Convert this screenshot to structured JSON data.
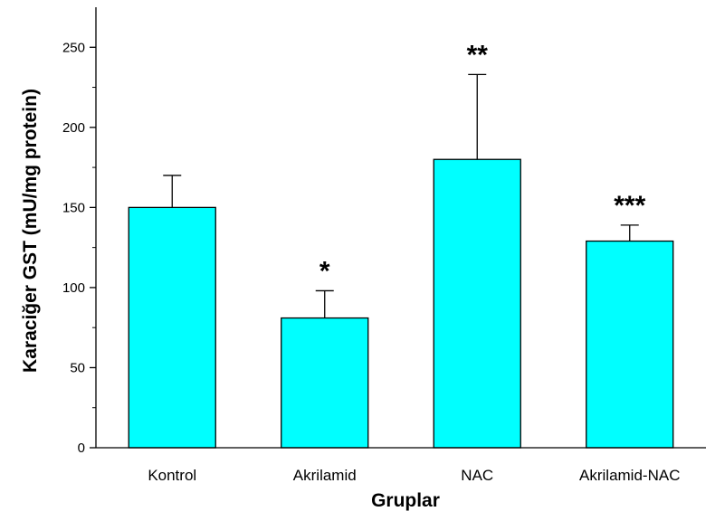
{
  "chart_data": {
    "type": "bar",
    "title": "",
    "xlabel": "Gruplar",
    "ylabel": "Karaciğer GST (mU/mg protein)",
    "categories": [
      "Kontrol",
      "Akrilamid",
      "NAC",
      "Akrilamid-NAC"
    ],
    "values": [
      150,
      81,
      180,
      129
    ],
    "error_upper": [
      170,
      98,
      233,
      139
    ],
    "annotations": [
      "",
      "*",
      "**",
      "***"
    ],
    "ylim": [
      0,
      275
    ],
    "yticks": [
      0,
      50,
      100,
      150,
      200,
      250
    ],
    "grid": false,
    "legend": "none",
    "bar_color": "#00FFFF",
    "edge_color": "#000000"
  }
}
